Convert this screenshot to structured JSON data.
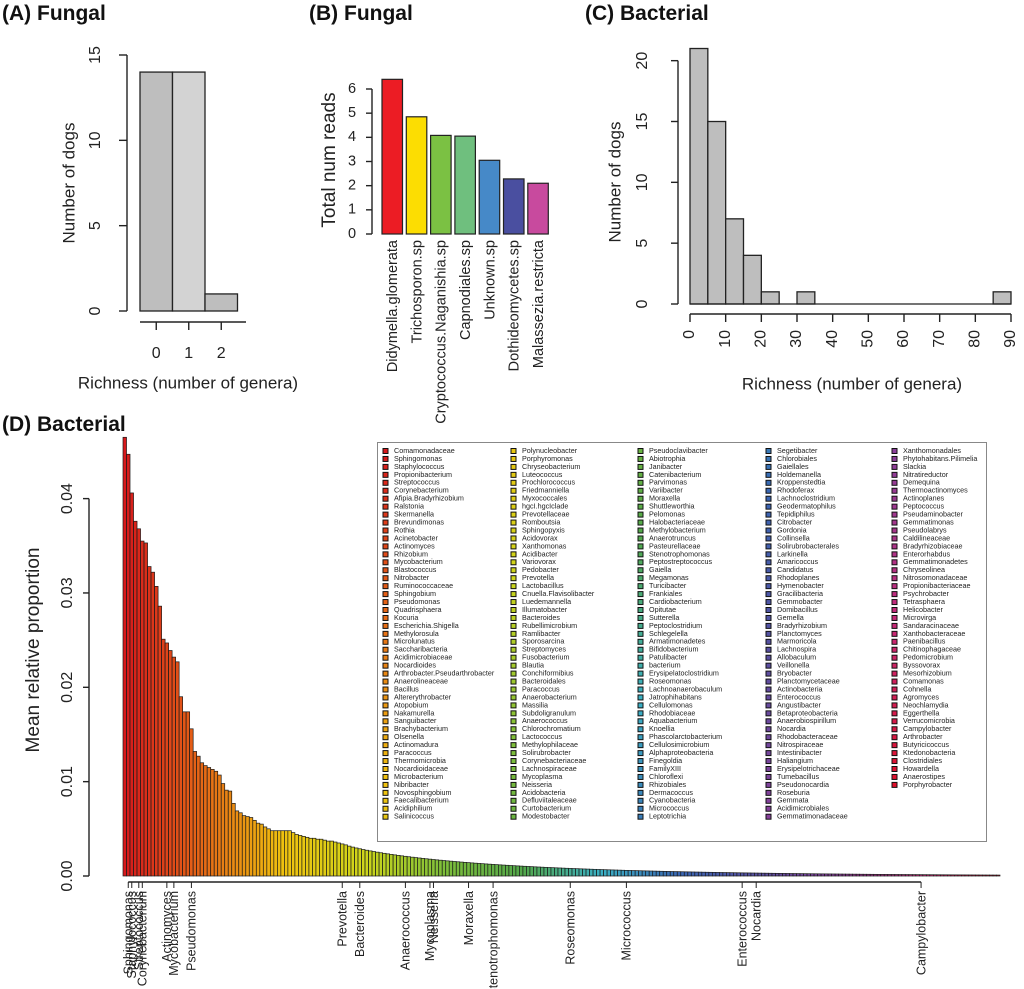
{
  "panels": {
    "A": {
      "title": "(A)  Fungal"
    },
    "B": {
      "title": "(B) Fungal"
    },
    "C": {
      "title": "(C) Bacterial"
    },
    "D": {
      "title": "(D)  Bacterial"
    }
  },
  "chart_data": [
    {
      "id": "A",
      "type": "bar",
      "title": "(A) Fungal",
      "xlabel": "Richness (number of genera)",
      "ylabel": "Number of dogs",
      "categories": [
        "0",
        "1",
        "2"
      ],
      "values": [
        14,
        14,
        1
      ],
      "bar_colors": [
        "#bebebe",
        "#d3d3d3",
        "#bebebe"
      ],
      "ylim": [
        0,
        15
      ],
      "yticks": [
        0,
        5,
        10,
        15
      ],
      "grid": false
    },
    {
      "id": "B",
      "type": "bar",
      "title": "(B) Fungal",
      "xlabel": "",
      "ylabel": "Total num reads",
      "categories": [
        "Didymella.glomerata",
        "Trichosporon.sp",
        "Cryptococcus.Naganishia.sp",
        "Capnodiales.sp",
        "Unknown.sp",
        "Dothideomycetes.sp",
        "Malassezia.restricta"
      ],
      "values": [
        6.4,
        4.85,
        4.08,
        4.05,
        3.05,
        2.28,
        2.1
      ],
      "bar_colors": [
        "#ec1c24",
        "#fcdd02",
        "#7bc143",
        "#6fbf7e",
        "#4689c8",
        "#4a4fa0",
        "#c84a9e"
      ],
      "ylim": [
        0,
        6.5
      ],
      "yticks": [
        0,
        1,
        2,
        3,
        4,
        5,
        6
      ],
      "grid": false
    },
    {
      "id": "C",
      "type": "bar",
      "title": "(C) Bacterial",
      "xlabel": "Richness (number of genera)",
      "ylabel": "Number of dogs",
      "bins": [
        [
          0,
          5
        ],
        [
          5,
          10
        ],
        [
          10,
          15
        ],
        [
          15,
          20
        ],
        [
          20,
          25
        ],
        [
          25,
          30
        ],
        [
          30,
          35
        ],
        [
          35,
          40
        ],
        [
          40,
          45
        ],
        [
          45,
          50
        ],
        [
          50,
          55
        ],
        [
          55,
          60
        ],
        [
          60,
          65
        ],
        [
          65,
          70
        ],
        [
          70,
          75
        ],
        [
          75,
          80
        ],
        [
          80,
          85
        ],
        [
          85,
          90
        ]
      ],
      "values": [
        21,
        15,
        7,
        4,
        1,
        0,
        1,
        0,
        0,
        0,
        0,
        0,
        0,
        0,
        0,
        0,
        0,
        1
      ],
      "bar_color": "#bebebe",
      "xlim": [
        0,
        90
      ],
      "xticks": [
        0,
        10,
        20,
        30,
        40,
        50,
        60,
        70,
        80,
        90
      ],
      "ylim": [
        0,
        21
      ],
      "yticks": [
        0,
        5,
        10,
        15,
        20
      ],
      "grid": false
    },
    {
      "id": "D",
      "type": "bar",
      "title": "(D) Bacterial",
      "xlabel": "",
      "ylabel": "Mean relative proportion",
      "ylim": [
        0,
        0.046
      ],
      "yticks": [
        "0.00",
        "0.01",
        "0.02",
        "0.03",
        "0.04"
      ],
      "grid": false,
      "color_ramp": [
        "#d7191c",
        "#e66a16",
        "#f0c20f",
        "#cfd61a",
        "#7fbf3a",
        "#53a84a",
        "#3ab0c4",
        "#3966b3",
        "#5a4fa0",
        "#8a3f9a",
        "#c62a7a",
        "#e0102a"
      ],
      "head_values": [
        0.0465,
        0.0447,
        0.0406,
        0.0376,
        0.0368,
        0.0355,
        0.0353,
        0.0328,
        0.0322,
        0.0307,
        0.0286,
        0.0251,
        0.0247,
        0.0239,
        0.0232,
        0.0227,
        0.019,
        0.0174,
        0.0174,
        0.0156,
        0.0132,
        0.0127,
        0.012,
        0.0117,
        0.0115,
        0.0113,
        0.0111,
        0.0107,
        0.0098,
        0.0091,
        0.009,
        0.0077,
        0.0069,
        0.0067,
        0.0064,
        0.0063,
        0.0062,
        0.0059,
        0.0056,
        0.0055,
        0.0052,
        0.005,
        0.0048,
        0.0048,
        0.0048,
        0.0048,
        0.0048,
        0.0048,
        0.0046,
        0.0044,
        0.0043,
        0.0042,
        0.0041,
        0.004,
        0.004,
        0.0039,
        0.0039,
        0.0038,
        0.0037,
        0.0037,
        0.0036,
        0.0035,
        0.0034
      ],
      "tail_decay": {
        "count": 187,
        "start": 0.0033,
        "end": 0.0001
      },
      "tick_labels": [
        {
          "label": "Sphingomonas",
          "rank": 2
        },
        {
          "label": "Staphylococcus",
          "rank": 3
        },
        {
          "label": "Streptococcus",
          "rank": 5
        },
        {
          "label": "Corynebacterium",
          "rank": 6
        },
        {
          "label": "Actinomyces",
          "rank": 13
        },
        {
          "label": "Mycobacterium",
          "rank": 15
        },
        {
          "label": "Pseudomonas",
          "rank": 20
        },
        {
          "label": "Prevotella",
          "rank": 63
        },
        {
          "label": "Bacteroides",
          "rank": 68
        },
        {
          "label": "Anaerococcus",
          "rank": 81
        },
        {
          "label": "Mycoplasma",
          "rank": 88
        },
        {
          "label": "Neisseria",
          "rank": 89
        },
        {
          "label": "Moraxella",
          "rank": 99
        },
        {
          "label": "Stenotrophomonas",
          "rank": 106
        },
        {
          "label": "Roseomonas",
          "rank": 128
        },
        {
          "label": "Micrococcus",
          "rank": 144
        },
        {
          "label": "Enterococcus",
          "rank": 177
        },
        {
          "label": "Nocardia",
          "rank": 181
        },
        {
          "label": "Campylobacter",
          "rank": 228
        }
      ],
      "legend": {
        "placement": "top-right",
        "columns": [
          [
            "Comamonadaceae",
            "Sphingomonas",
            "Staphylococcus",
            "Propionibacterium",
            "Streptococcus",
            "Corynebacterium",
            "Afipia.Bradyrhizobium",
            "Ralstonia",
            "Skermanella",
            "Brevundimonas",
            "Rothia",
            "Acinetobacter",
            "Actinomyces",
            "Rhizobium",
            "Mycobacterium",
            "Blastococcus",
            "Nitrobacter",
            "Ruminococcaceae",
            "Sphingobium",
            "Pseudomonas",
            "Quadrisphaera",
            "Kocuria",
            "Escherichia.Shigella",
            "Methylorosula",
            "Microlunatus",
            "Saccharibacteria",
            "Acidimicrobiaceae",
            "Nocardioides",
            "Arthrobacter.Pseudarthrobacter",
            "Anaerolineaceae",
            "Bacillus",
            "Altererythrobacter",
            "Atopobium",
            "Nakamurella",
            "Sanguibacter",
            "Brachybacterium",
            "Olsenella",
            "Actinomadura",
            "Paracoccus",
            "Thermomicrobia",
            "Nocardioidaceae",
            "Microbacterium",
            "Nibribacter",
            "Novosphingobium",
            "Faecalibacterium",
            "Acidiphilium",
            "Salinicoccus"
          ],
          [
            "Polynucleobacter",
            "Porphyromonas",
            "Chryseobacterium",
            "Luteococcus",
            "Prochlorococcus",
            "Friedmanniella",
            "Myxococcales",
            "hgcI.hgcIclade",
            "Prevotellaceae",
            "Romboutsia",
            "Sphingopyxis",
            "Acidovorax",
            "Xanthomonas",
            "Acidibacter",
            "Variovorax",
            "Pedobacter",
            "Prevotella",
            "Lactobacillus",
            "Cnuella.Flavisolibacter",
            "Luedemannella",
            "Illumatobacter",
            "Bacteroides",
            "Rubellimicrobium",
            "Ramlibacter",
            "Sporosarcina",
            "Streptomyces",
            "Fusobacterium",
            "Blautia",
            "Conchiformibius",
            "Bacteroidales",
            "Paracoccus",
            "Anaerobacterium",
            "Massilia",
            "Subdoligranulum",
            "Anaerococcus",
            "Chlorochromatium",
            "Lactococcus",
            "Methylophilaceae",
            "Solirubrobacter",
            "Corynebacteriaceae",
            "Lachnospiraceae",
            "Mycoplasma",
            "Neisseria",
            "Acidobacteria",
            "Defluviitaleaceae",
            "Curtobacterium",
            "Modestobacter"
          ],
          [
            "Pseudoclavibacter",
            "Abiotrophia",
            "Janibacter",
            "Catenibacterium",
            "Parvimonas",
            "Variibacter",
            "Moraxella",
            "Shuttleworthia",
            "Pelomonas",
            "Halobacteriaceae",
            "Methylobacterium",
            "Anaerotruncus",
            "Pasteurellaceae",
            "Stenotrophomonas",
            "Peptostreptococcus",
            "Gaiella",
            "Megamonas",
            "Turicibacter",
            "Frankiales",
            "Cardiobacterium",
            "Opitutae",
            "Sutterella",
            "Peptoclostridium",
            "Schlegelella",
            "Armatimonadetes",
            "Bifidobacterium",
            "Patulibacter",
            "bacterium",
            "Erysipelatoclostridium",
            "Roseomonas",
            "Lachnoanaerobaculum",
            "Jatrophihabitans",
            "Cellulomonas",
            "Rhodobiaceae",
            "Aquabacterium",
            "Knoellia",
            "Phascolarctobacterium",
            "Cellulosimicrobium",
            "Alphaproteobacteria",
            "Finegoldia",
            "FamilyXIII",
            "Chloroflexi",
            "Rhizobiales",
            "Dermacoccus",
            "Cyanobacteria",
            "Micrococcus",
            "Leptotrichia"
          ],
          [
            "Segetibacter",
            "Chlorobiales",
            "Gaiellales",
            "Holdemanella",
            "Kroppenstedtia",
            "Rhodoferax",
            "Lachnoclostridium",
            "Geodermatophilus",
            "Tepidiphilus",
            "Citrobacter",
            "Gordonia",
            "Collinsella",
            "Solirubrobacterales",
            "Larkinella",
            "Amaricoccus",
            "Candidatus",
            "Rhodoplanes",
            "Hymenobacter",
            "Gracilibacteria",
            "Gemmobacter",
            "Domibacillus",
            "Gemella",
            "Bradyrhizobium",
            "Planctomyces",
            "Marmoricola",
            "Lachnospira",
            "Allobaculum",
            "Veillonella",
            "Bryobacter",
            "Planctomycetaceae",
            "Actinobacteria",
            "Enterococcus",
            "Angustibacter",
            "Betaproteobacteria",
            "Anaerobiospirillum",
            "Nocardia",
            "Rhodobacteraceae",
            "Nitrospiraceae",
            "Intestinibacter",
            "Haliangium",
            "Erysipelotrichaceae",
            "Tumebacillus",
            "Pseudonocardia",
            "Roseburia",
            "Gemmata",
            "Acidimicrobiales",
            "Gemmatimonadaceae"
          ],
          [
            "Xanthomonadales",
            "Phytohabitans.Pilimelia",
            "Slackia",
            "Nitratireductor",
            "Demequina",
            "Thermoactinomyces",
            "Actinoplanes",
            "Peptococcus",
            "Pseudaminobacter",
            "Gemmatimonas",
            "Pseudolabrys",
            "Caldilineaceae",
            "Bradyrhizobiaceae",
            "Enterorhabdus",
            "Gemmatimonadetes",
            "Chryseolinea",
            "Nitrosomonadaceae",
            "Propionibacteriaceae",
            "Psychrobacter",
            "Tetrasphaera",
            "Helicobacter",
            "Microvirga",
            "Sandaracinaceae",
            "Xanthobacteraceae",
            "Paenibacillus",
            "Chitinophagaceae",
            "Pedomicrobium",
            "Byssovorax",
            "Mesorhizobium",
            "Comamonas",
            "Cohnella",
            "Agromyces",
            "Neochlamydia",
            "Eggerthella",
            "Verrucomicrobia",
            "Campylobacter",
            "Arthrobacter",
            "Butyricicoccus",
            "Ktedonobacteria",
            "Clostridiales",
            "Howardella",
            "Anaerostipes",
            "Porphyrobacter"
          ]
        ]
      }
    }
  ]
}
